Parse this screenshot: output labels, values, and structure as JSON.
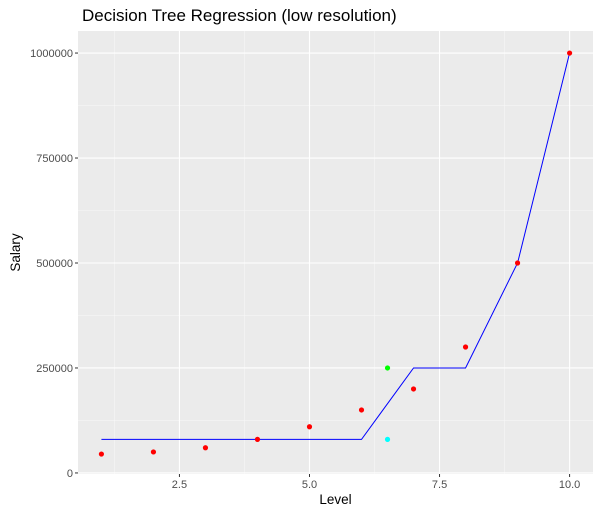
{
  "chart_data": {
    "type": "scatter",
    "title": "Decision Tree Regression (low resolution)",
    "xlabel": "Level",
    "ylabel": "Salary",
    "xlim": [
      0.55,
      10.45
    ],
    "ylim": [
      -2500,
      1052500
    ],
    "x_ticks": [
      2.5,
      5.0,
      7.5,
      10.0
    ],
    "x_tick_labels": [
      "2.5",
      "5.0",
      "7.5",
      "10.0"
    ],
    "y_ticks": [
      0,
      250000,
      500000,
      750000,
      1000000
    ],
    "y_tick_labels": [
      "0",
      "250000",
      "500000",
      "750000",
      "1000000"
    ],
    "grid": true,
    "series": [
      {
        "type": "scatter",
        "color": "#ff0000",
        "x": [
          1,
          2,
          3,
          4,
          5,
          6,
          7,
          8,
          9,
          10
        ],
        "y": [
          45000,
          50000,
          60000,
          80000,
          110000,
          150000,
          200000,
          300000,
          500000,
          1000000
        ]
      },
      {
        "type": "line",
        "color": "#0000ff",
        "x": [
          1,
          2,
          3,
          4,
          5,
          6,
          7,
          8,
          9,
          10
        ],
        "y": [
          80000,
          80000,
          80000,
          80000,
          80000,
          80000,
          250000,
          250000,
          500000,
          1000000
        ]
      },
      {
        "type": "scatter",
        "color": "#00ff00",
        "x": [
          6.5
        ],
        "y": [
          250000
        ]
      },
      {
        "type": "scatter",
        "color": "#00ffff",
        "x": [
          6.5
        ],
        "y": [
          80000
        ]
      }
    ]
  }
}
